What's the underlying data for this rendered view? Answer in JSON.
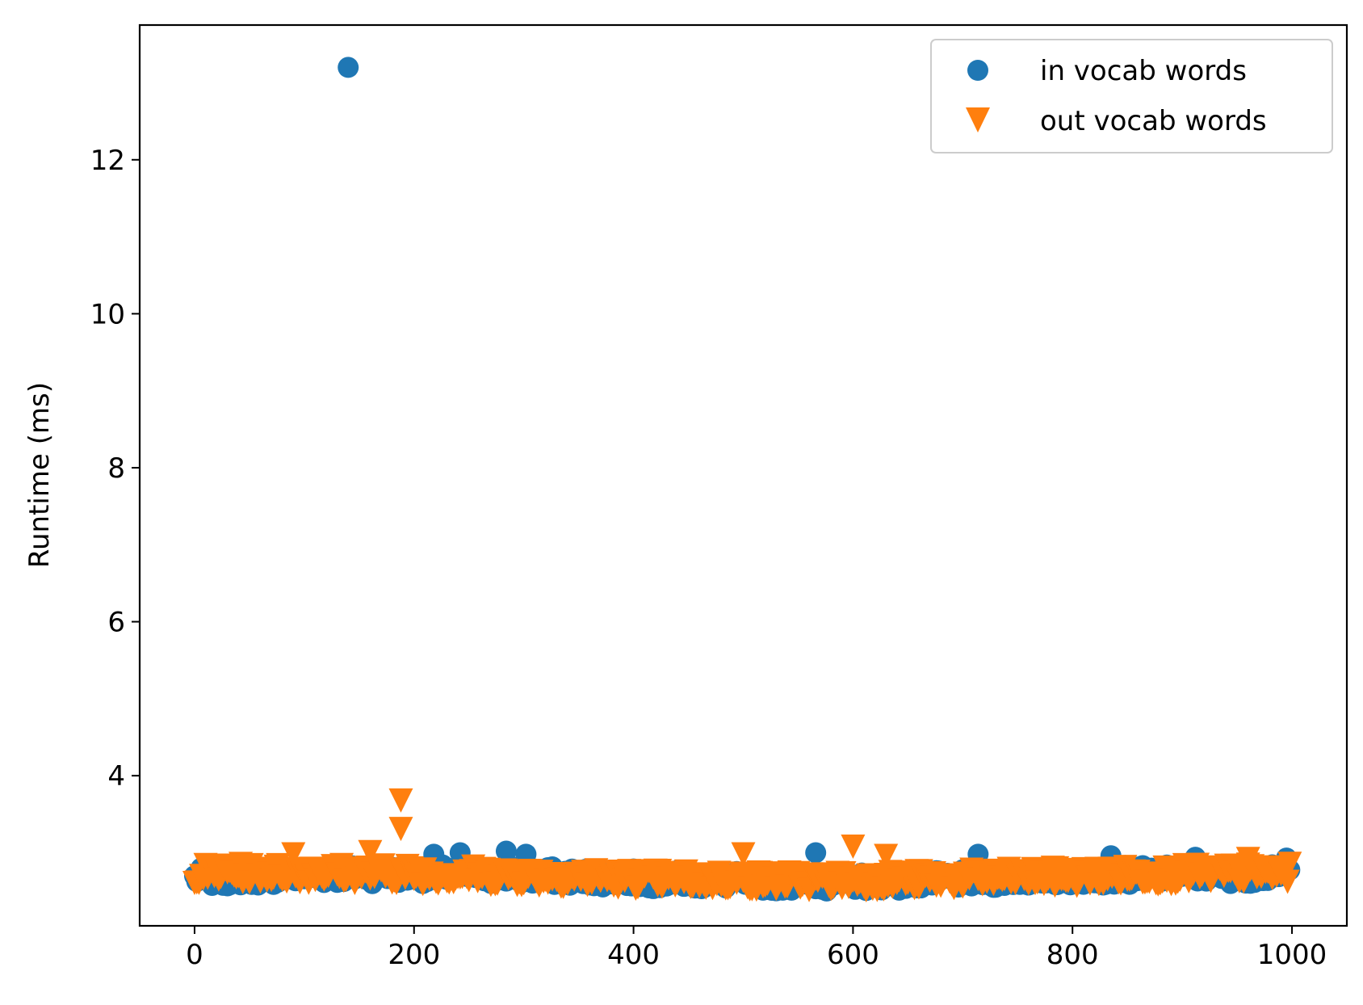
{
  "chart_data": {
    "type": "scatter",
    "title": "",
    "xlabel": "",
    "ylabel": "Runtime (ms)",
    "xlim": [
      -50,
      1050
    ],
    "ylim": [
      2.05,
      13.75
    ],
    "xticks": [
      0,
      200,
      400,
      600,
      800,
      1000
    ],
    "yticks": [
      4,
      6,
      8,
      10,
      12
    ],
    "grid": false,
    "legend_position": "top-right",
    "n_points_per_series": 1000,
    "series": [
      {
        "name": "in vocab words",
        "marker": "circle",
        "color": "#1f77b4",
        "baseline_range": [
          2.55,
          2.8
        ],
        "notable_points": [
          {
            "x": 140,
            "y": 13.2
          },
          {
            "x": 218,
            "y": 2.98
          },
          {
            "x": 242,
            "y": 3.0
          },
          {
            "x": 284,
            "y": 3.02
          },
          {
            "x": 302,
            "y": 2.98
          },
          {
            "x": 566,
            "y": 3.0
          },
          {
            "x": 714,
            "y": 2.98
          },
          {
            "x": 835,
            "y": 2.96
          },
          {
            "x": 912,
            "y": 2.94
          },
          {
            "x": 995,
            "y": 2.93
          }
        ]
      },
      {
        "name": "out vocab words",
        "marker": "triangle-down",
        "color": "#ff7f0e",
        "baseline_range": [
          2.6,
          2.85
        ],
        "notable_points": [
          {
            "x": 188,
            "y": 3.72
          },
          {
            "x": 188,
            "y": 3.35
          },
          {
            "x": 160,
            "y": 3.05
          },
          {
            "x": 90,
            "y": 3.02
          },
          {
            "x": 500,
            "y": 3.02
          },
          {
            "x": 600,
            "y": 3.12
          },
          {
            "x": 630,
            "y": 3.0
          },
          {
            "x": 960,
            "y": 2.96
          }
        ]
      }
    ]
  }
}
